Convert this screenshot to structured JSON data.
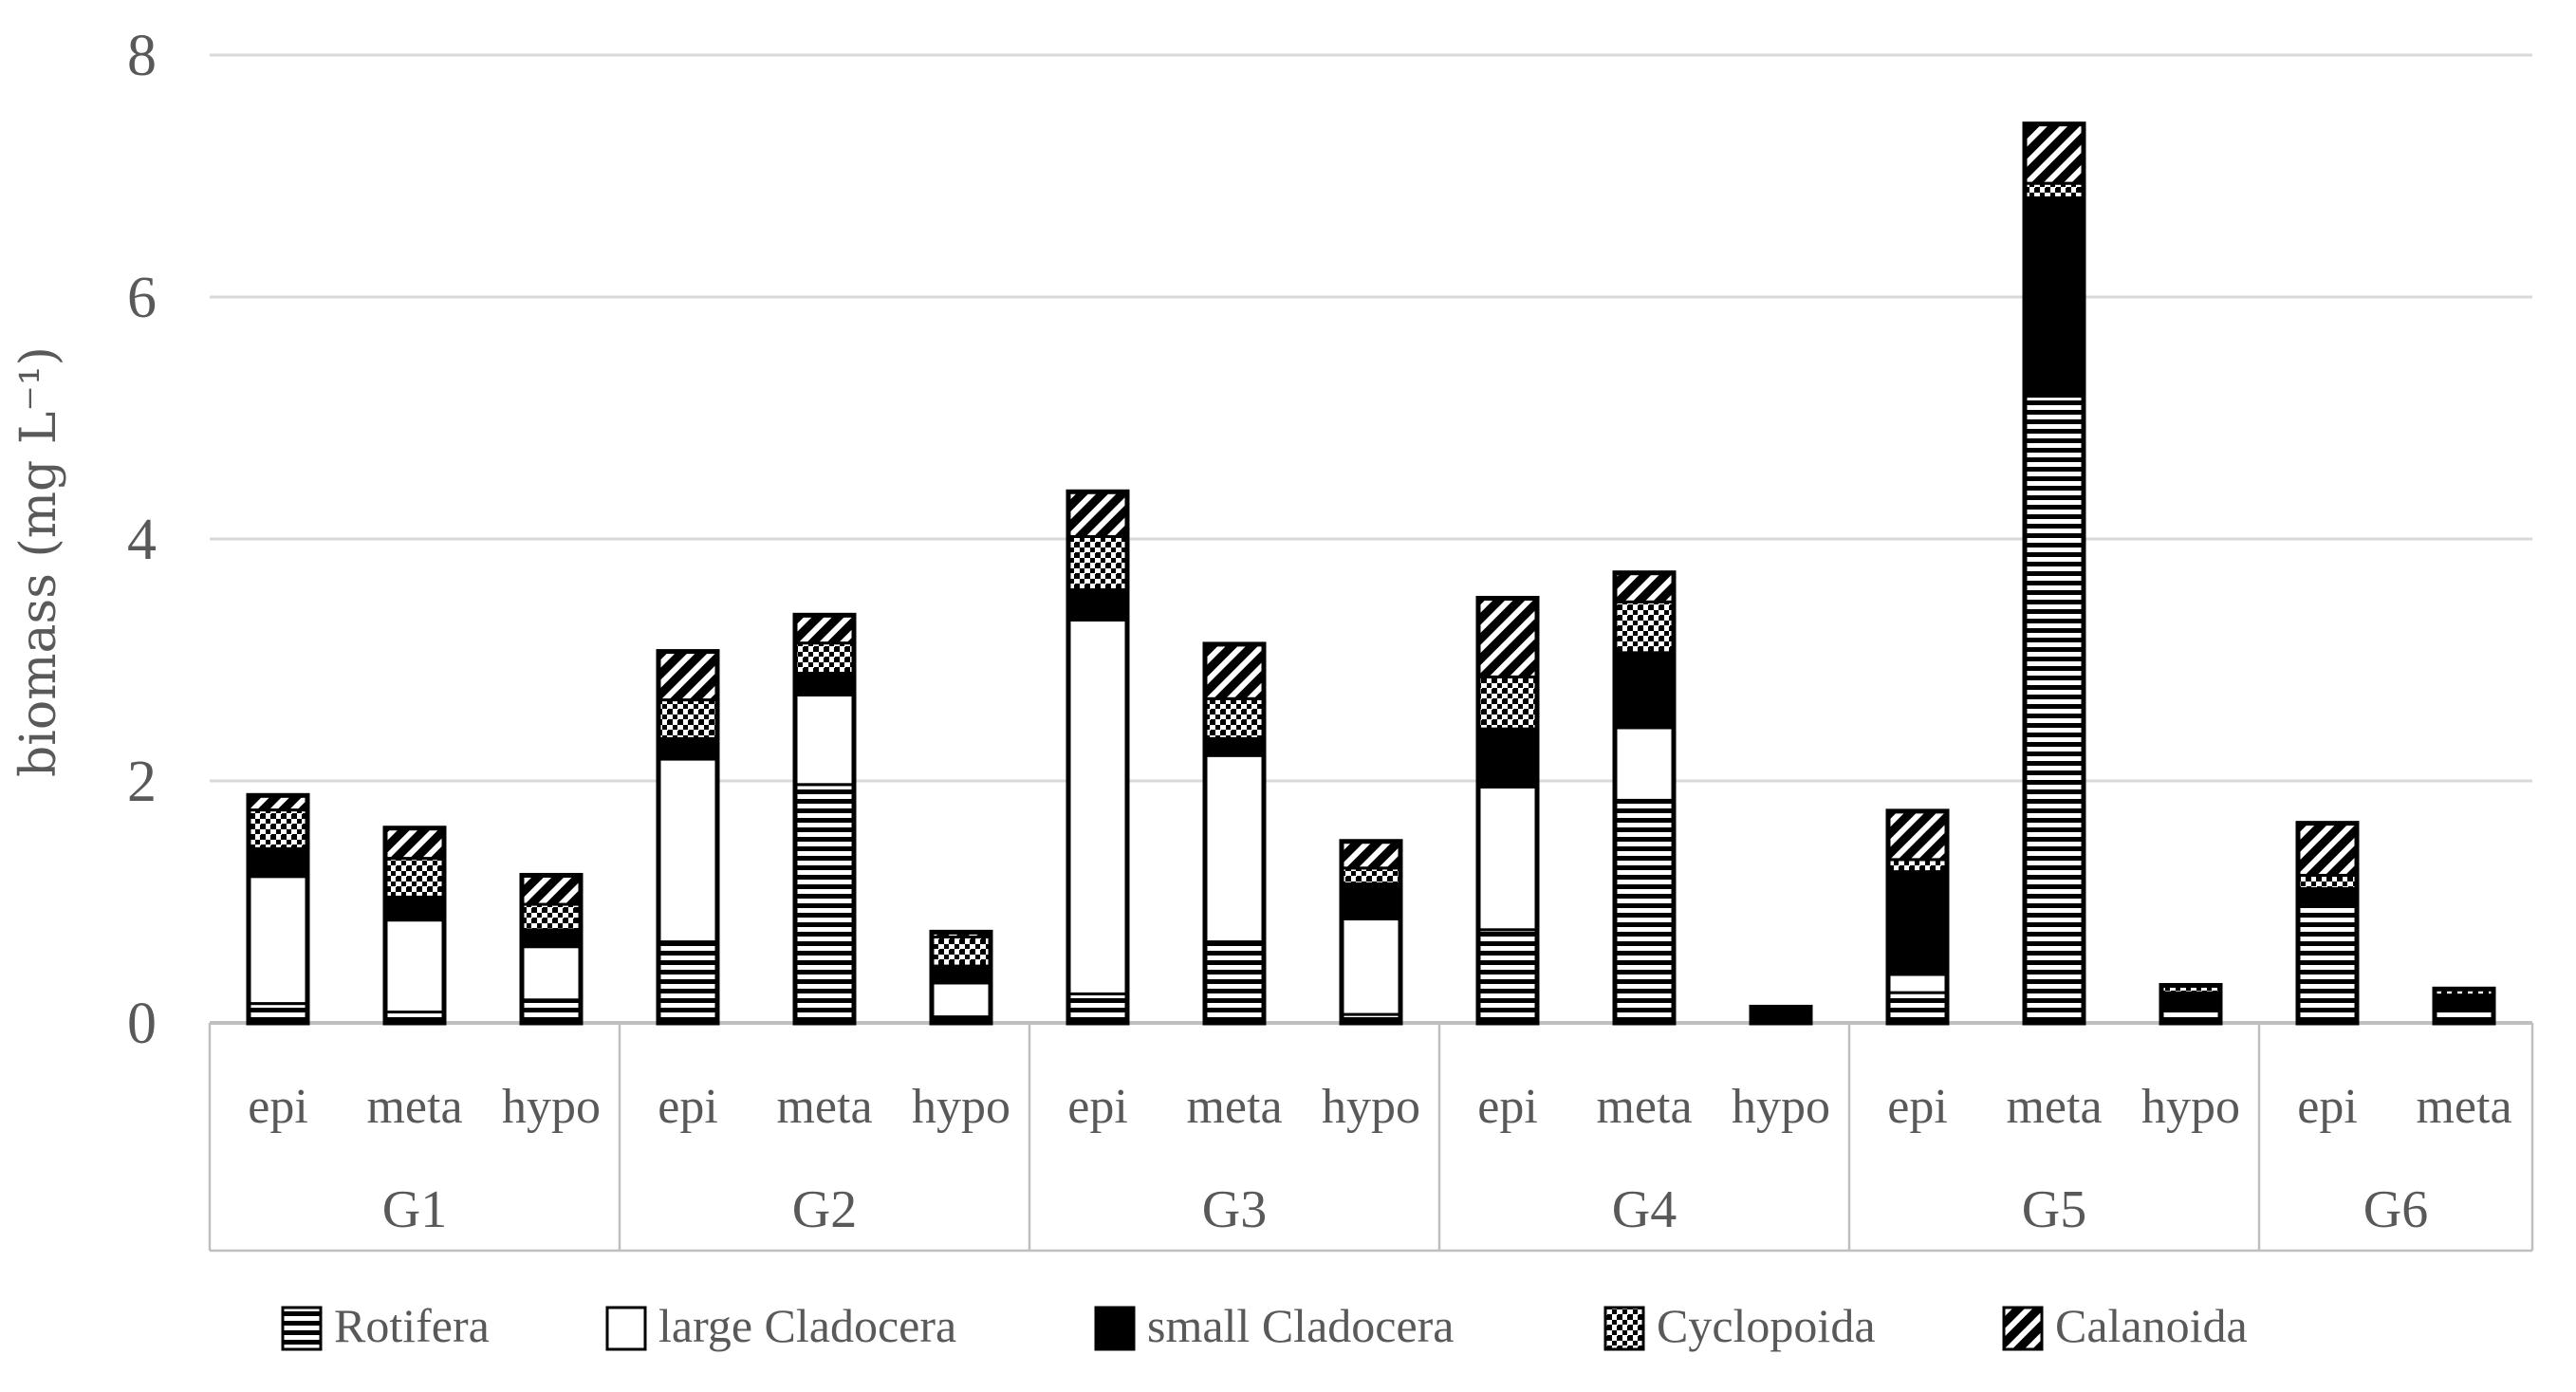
{
  "figure_title": "zooplankton biomass stacked bar figure",
  "y_axis": {
    "label": "biomass (mg L⁻¹)",
    "tick_labels": [
      "0",
      "2",
      "4",
      "6",
      "8"
    ]
  },
  "x_axis": {
    "group_labels": [
      "G1",
      "G2",
      "G3",
      "G4",
      "G5",
      "G6"
    ],
    "depth_labels": [
      "epi",
      "meta",
      "hypo"
    ]
  },
  "legend": {
    "items": [
      {
        "label": "Rotifera",
        "pattern": "horizontal-lines"
      },
      {
        "label": "large Cladocera",
        "pattern": "white"
      },
      {
        "label": "small Cladocera",
        "pattern": "solid-black"
      },
      {
        "label": "Cyclopoida",
        "pattern": "dots"
      },
      {
        "label": "Calanoida",
        "pattern": "diagonal-hatch"
      }
    ]
  },
  "colors": {
    "pattern_foreground": "#000000",
    "pattern_background": "#ffffff",
    "text": "#595959",
    "gridline": "#d9d9d9",
    "axis_line": "#bfbfbf"
  },
  "chart_data": {
    "type": "bar",
    "stacked": true,
    "title": "",
    "xlabel": "",
    "ylabel": "biomass (mg L⁻¹)",
    "ylim": [
      0,
      8
    ],
    "yticks": [
      0,
      2,
      4,
      6,
      8
    ],
    "grid": true,
    "legend_position": "bottom",
    "series_names": [
      "Rotifera",
      "large Cladocera",
      "small Cladocera",
      "Cyclopoida",
      "Calanoida"
    ],
    "series_patterns": [
      "horizontal-lines",
      "white",
      "solid-black",
      "dots",
      "diagonal-hatch"
    ],
    "units": "mg L-1",
    "groups": [
      {
        "label": "G1",
        "bars": [
          {
            "label": "epi",
            "values": [
              0.16,
              1.05,
              0.23,
              0.32,
              0.12
            ],
            "total": 1.88
          },
          {
            "label": "meta",
            "values": [
              0.09,
              0.76,
              0.19,
              0.32,
              0.25
            ],
            "total": 1.61
          },
          {
            "label": "hypo",
            "values": [
              0.19,
              0.44,
              0.14,
              0.21,
              0.24
            ],
            "total": 1.22
          }
        ]
      },
      {
        "label": "G2",
        "bars": [
          {
            "label": "epi",
            "values": [
              0.67,
              1.51,
              0.17,
              0.32,
              0.4
            ],
            "total": 3.07
          },
          {
            "label": "meta",
            "values": [
              1.97,
              0.74,
              0.18,
              0.25,
              0.23
            ],
            "total": 3.37
          },
          {
            "label": "hypo",
            "values": [
              0.05,
              0.28,
              0.14,
              0.24,
              0.04
            ],
            "total": 0.75
          }
        ]
      },
      {
        "label": "G3",
        "bars": [
          {
            "label": "epi",
            "values": [
              0.24,
              3.09,
              0.25,
              0.44,
              0.37
            ],
            "total": 4.39
          },
          {
            "label": "meta",
            "values": [
              0.67,
              1.54,
              0.14,
              0.33,
              0.45
            ],
            "total": 3.13
          },
          {
            "label": "hypo",
            "values": [
              0.07,
              0.79,
              0.29,
              0.13,
              0.22
            ],
            "total": 1.5
          }
        ]
      },
      {
        "label": "G4",
        "bars": [
          {
            "label": "epi",
            "values": [
              0.77,
              1.18,
              0.48,
              0.43,
              0.65
            ],
            "total": 3.51
          },
          {
            "label": "meta",
            "values": [
              1.84,
              0.6,
              0.62,
              0.42,
              0.24
            ],
            "total": 3.72
          },
          {
            "label": "hypo",
            "values": [
              0.01,
              0.0,
              0.12,
              0.0,
              0.0
            ],
            "total": 0.13
          }
        ]
      },
      {
        "label": "G5",
        "bars": [
          {
            "label": "epi",
            "values": [
              0.25,
              0.15,
              0.85,
              0.1,
              0.4
            ],
            "total": 1.75
          },
          {
            "label": "meta",
            "values": [
              5.18,
              0.0,
              1.64,
              0.12,
              0.49
            ],
            "total": 7.43
          },
          {
            "label": "hypo",
            "values": [
              0.11,
              0.0,
              0.14,
              0.06,
              0.0
            ],
            "total": 0.31
          }
        ]
      },
      {
        "label": "G6",
        "bars": [
          {
            "label": "epi",
            "values": [
              0.98,
              0.0,
              0.13,
              0.11,
              0.43
            ],
            "total": 1.65
          },
          {
            "label": "meta",
            "values": [
              0.1,
              0.0,
              0.13,
              0.05,
              0.0
            ],
            "total": 0.28
          }
        ]
      }
    ]
  }
}
